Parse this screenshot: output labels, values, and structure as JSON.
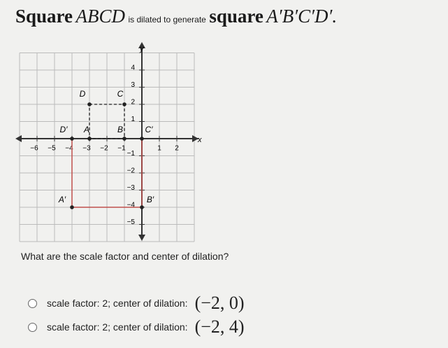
{
  "title": {
    "word1": "Square",
    "name1": "ABCD",
    "middle": "is dilated to generate",
    "word2": "square",
    "name2": "A′B′C′D′."
  },
  "graph": {
    "x_axis_label": "x",
    "y_axis_label": "y",
    "x_tick_labels": [
      "−6",
      "−5",
      "−4",
      "−3",
      "−2",
      "−1",
      "1",
      "2"
    ],
    "y_tick_labels": [
      "4",
      "3",
      "2",
      "1",
      "−1",
      "−2",
      "−3",
      "−4",
      "−5"
    ],
    "point_labels": [
      "D",
      "C",
      "D′",
      "A",
      "B",
      "C′",
      "A′",
      "B′"
    ]
  },
  "question": "What are the scale factor and center of dilation?",
  "options": [
    {
      "text": "scale factor: 2; center of dilation:",
      "math": "(−2, 0)"
    },
    {
      "text": "scale factor: 2; center of dilation:",
      "math": "(−2, 4)"
    }
  ]
}
